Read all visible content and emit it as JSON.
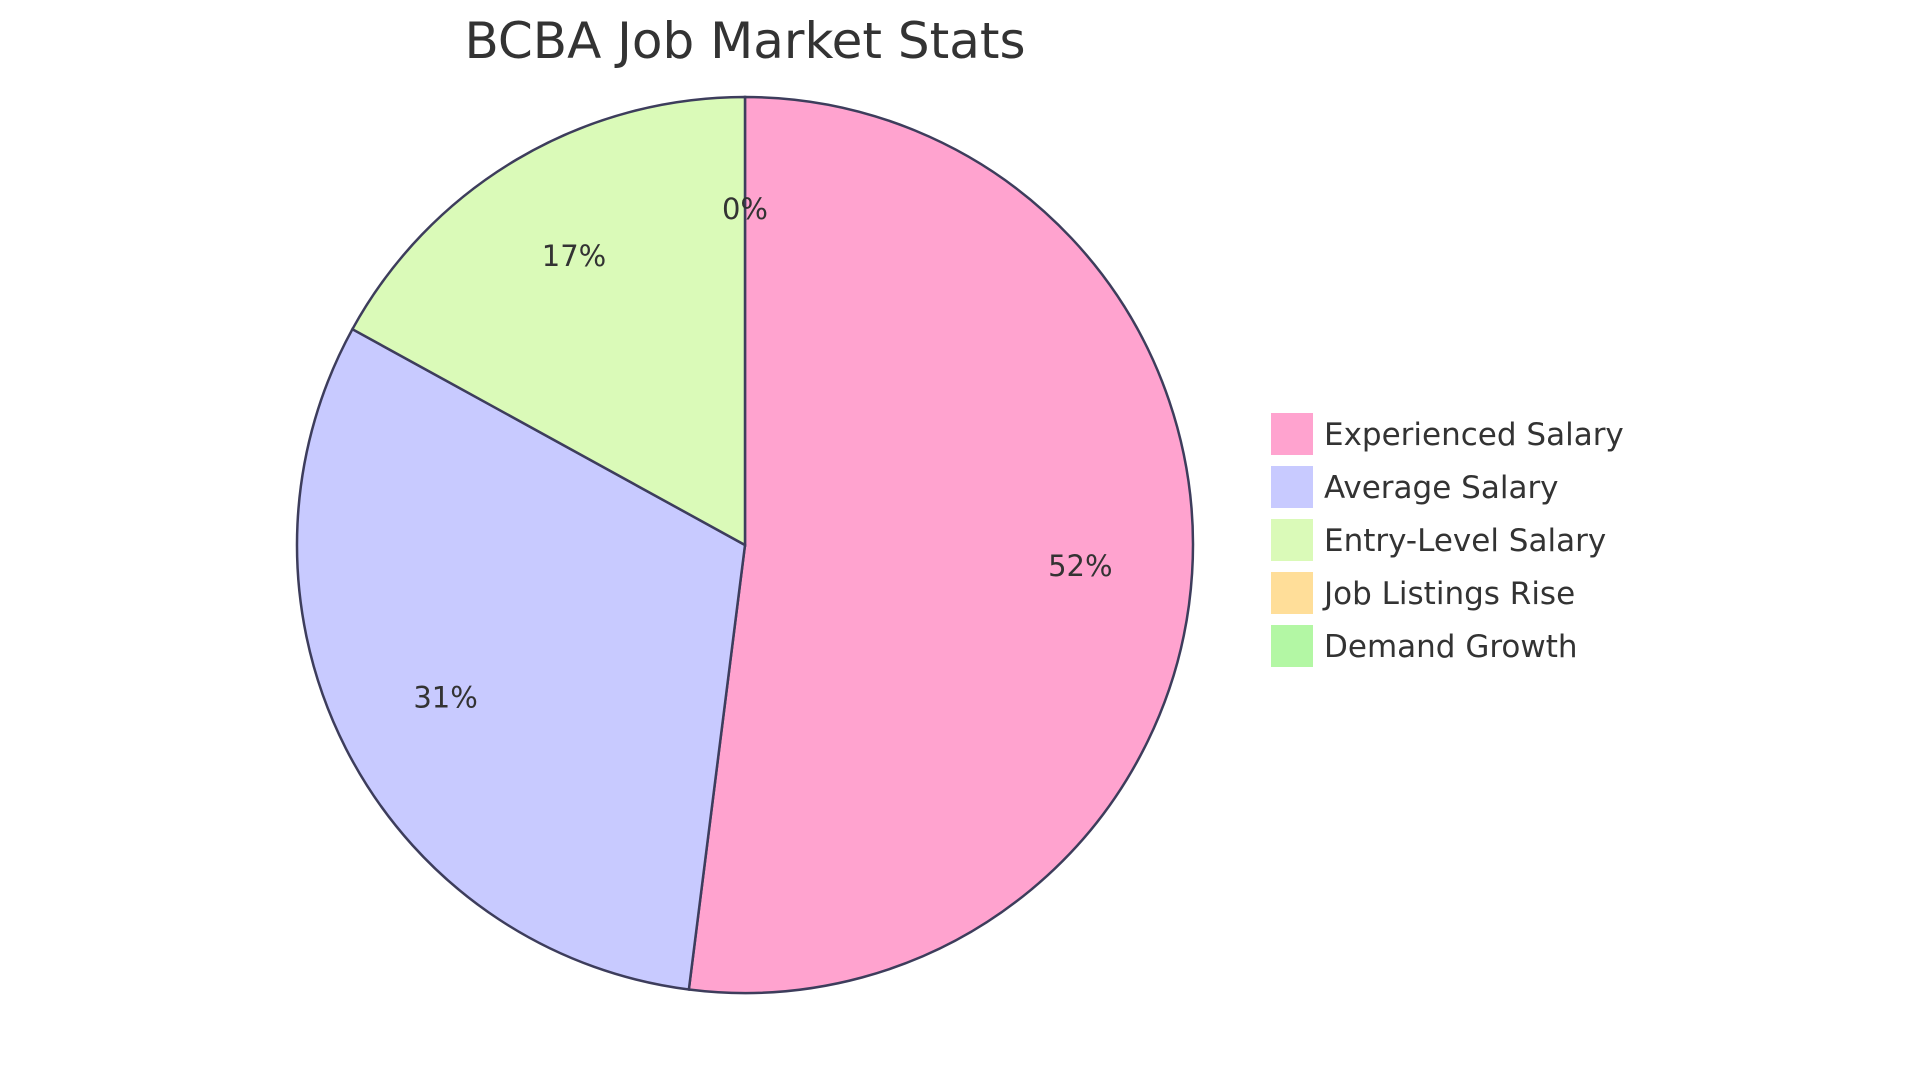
{
  "chart_data": {
    "type": "pie",
    "title": "BCBA Job Market Stats",
    "categories": [
      "Experienced Salary",
      "Average Salary",
      "Entry-Level Salary",
      "Job Listings Rise",
      "Demand Growth"
    ],
    "values": [
      52,
      31,
      17,
      0,
      0
    ],
    "percent_labels": [
      "52%",
      "31%",
      "17%",
      "0%",
      "0%"
    ],
    "colors": [
      "#ffa3cf",
      "#c8caff",
      "#dafab8",
      "#ffde99",
      "#b3f7a4"
    ],
    "stroke_color": "#3d3d5c",
    "legend_position": "right"
  }
}
